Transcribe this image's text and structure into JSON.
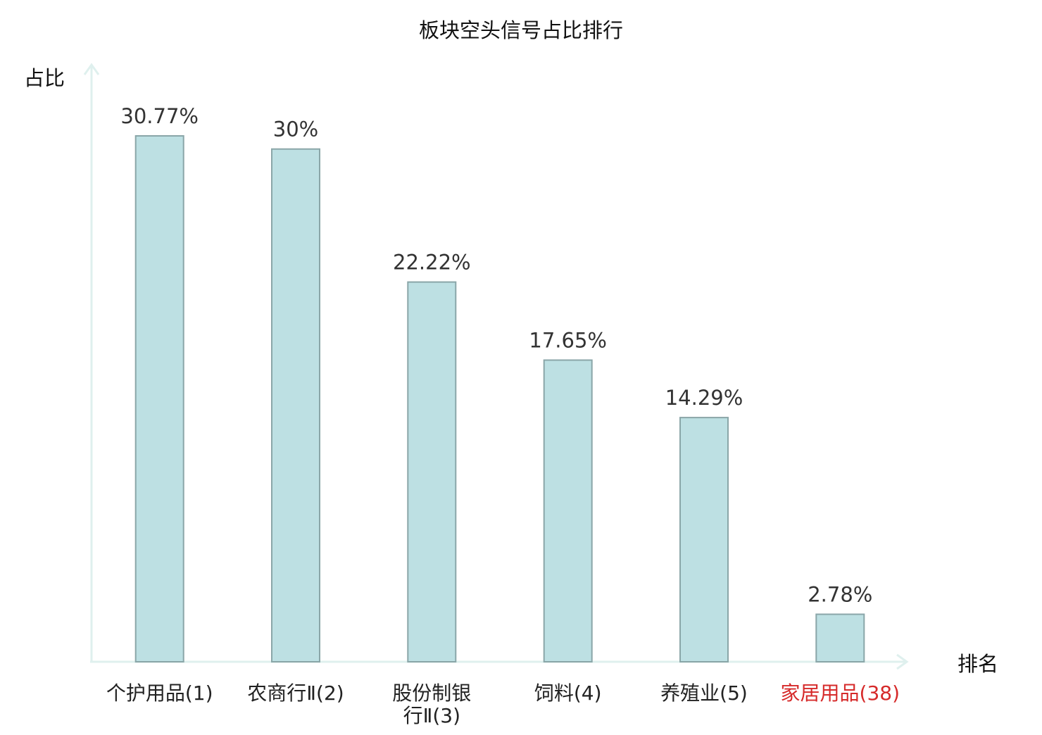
{
  "chart_data": {
    "type": "bar",
    "title": "板块空头信号占比排行",
    "ylabel": "占比",
    "xlabel": "排名",
    "categories": [
      [
        "个护用品(1)"
      ],
      [
        "农商行Ⅱ(2)"
      ],
      [
        "股份制银",
        "行Ⅱ(3)"
      ],
      [
        "饲料(4)"
      ],
      [
        "养殖业(5)"
      ],
      [
        "家居用品(38)"
      ]
    ],
    "values": [
      30.77,
      30,
      22.22,
      17.65,
      14.29,
      2.78
    ],
    "value_labels": [
      "30.77%",
      "30%",
      "22.22%",
      "17.65%",
      "14.29%",
      "2.78%"
    ],
    "highlight_index": 5,
    "ylim": [
      0,
      32
    ],
    "grid": false,
    "colors": {
      "bar_fill": "#bde0e3",
      "bar_stroke": "#8aa6a8",
      "axis": "#dff0ee",
      "text": "#222222",
      "value_text": "#333333",
      "highlight_text": "#d62a2a"
    }
  }
}
